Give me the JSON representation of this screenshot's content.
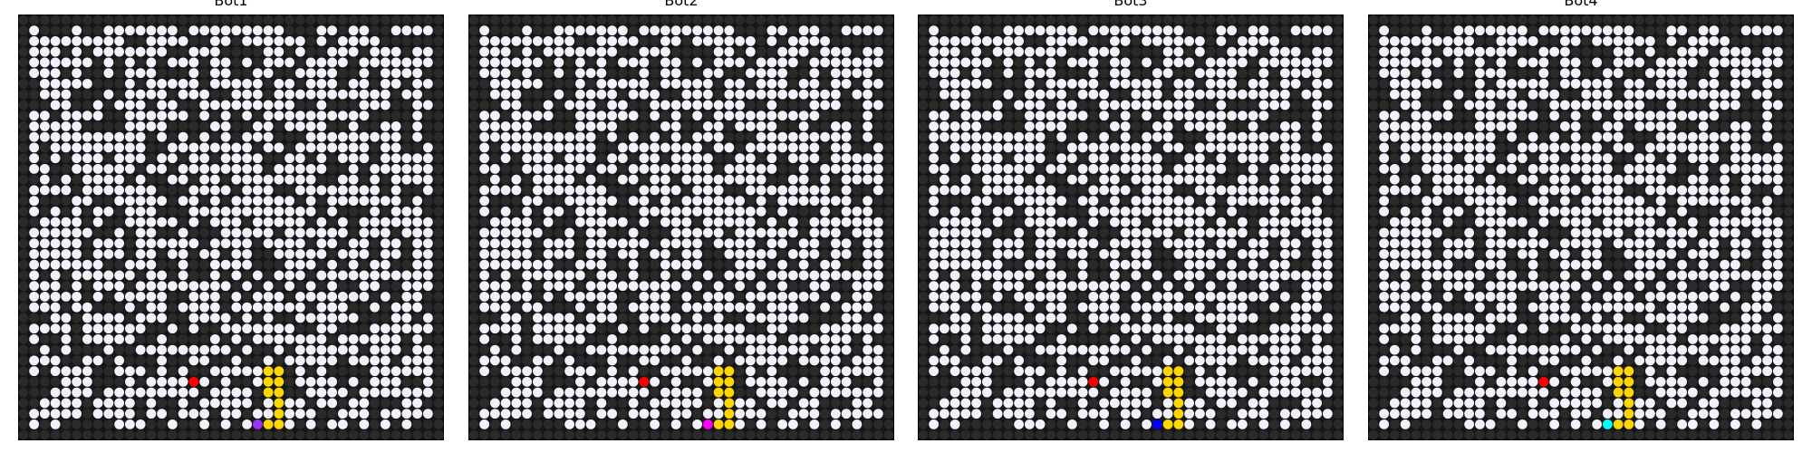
{
  "palette": {
    "wall": "#2a2a2a",
    "open": "#f1f1fb",
    "fire": "#ff0000",
    "path": "#ffd700",
    "background": "#161616"
  },
  "grid_size": 40,
  "panels": [
    {
      "title": "Bot1",
      "bot_color": "#9b30ff"
    },
    {
      "title": "Bot2",
      "bot_color": "#ff00ff"
    },
    {
      "title": "Bot3",
      "bot_color": "#0000ff"
    },
    {
      "title": "Bot4",
      "bot_color": "#00ffff"
    }
  ]
}
